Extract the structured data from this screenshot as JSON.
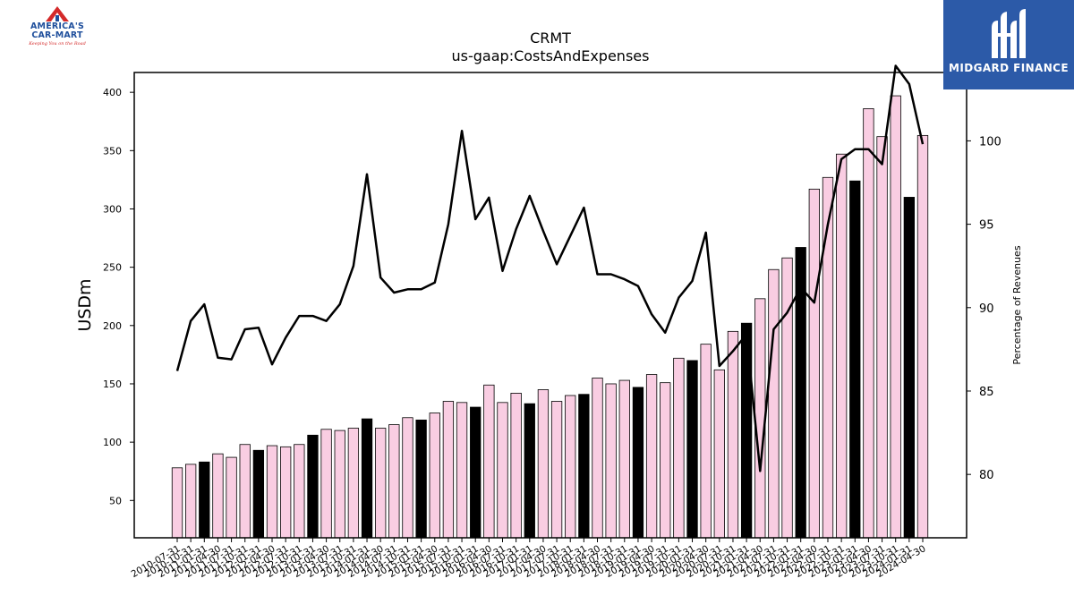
{
  "logos": {
    "left": {
      "line1": "AMERICA'S",
      "line2": "CAR-MART",
      "tagline": "Keeping You on the Road"
    },
    "right": {
      "name": "MIDGARD FINANCE"
    }
  },
  "colors": {
    "bar_fill": "#f9cde2",
    "bar_highlight": "#000000",
    "bar_edge": "#000000",
    "line": "#000000",
    "logo_right_bg": "#2c5aa8",
    "logo_red": "#d42a2a",
    "logo_blue": "#1f4f9c"
  },
  "chart_data": {
    "type": "bar",
    "title": "CRMT",
    "subtitle": "us-gaap:CostsAndExpenses",
    "ylabel": "USDm",
    "y2label": "Percentage of Revenues",
    "ylim": [
      18,
      417
    ],
    "y2lim": [
      76.2,
      104.1
    ],
    "yticks": [
      50,
      100,
      150,
      200,
      250,
      300,
      350,
      400
    ],
    "y2ticks": [
      80,
      85,
      90,
      95,
      100
    ],
    "categories": [
      "2010-07-31",
      "2010-10-31",
      "2011-01-31",
      "2011-04-30",
      "2011-07-31",
      "2011-10-31",
      "2012-01-31",
      "2012-04-30",
      "2012-07-31",
      "2012-10-31",
      "2013-01-31",
      "2013-04-30",
      "2013-07-31",
      "2013-10-31",
      "2014-01-31",
      "2014-04-30",
      "2014-07-31",
      "2014-10-31",
      "2015-01-31",
      "2015-04-30",
      "2015-07-31",
      "2015-10-31",
      "2016-01-31",
      "2016-04-30",
      "2016-07-31",
      "2016-10-31",
      "2017-01-31",
      "2017-04-30",
      "2017-07-31",
      "2017-10-31",
      "2018-01-31",
      "2018-04-30",
      "2018-07-31",
      "2018-10-31",
      "2019-01-31",
      "2019-04-30",
      "2019-07-31",
      "2019-10-31",
      "2020-01-31",
      "2020-04-30",
      "2020-07-31",
      "2020-10-31",
      "2021-01-31",
      "2021-04-30",
      "2021-07-31",
      "2021-10-31",
      "2022-01-31",
      "2022-04-30",
      "2022-07-31",
      "2022-10-31",
      "2023-01-31",
      "2023-04-30",
      "2023-07-31",
      "2023-10-31",
      "2024-01-31",
      "2024-04-30"
    ],
    "series": [
      {
        "type": "bar",
        "axis": "left",
        "values": [
          78,
          81,
          83,
          90,
          87,
          98,
          93,
          97,
          96,
          98,
          106,
          111,
          110,
          112,
          120,
          112,
          115,
          121,
          119,
          125,
          135,
          134,
          130,
          149,
          134,
          142,
          133,
          145,
          135,
          140,
          141,
          155,
          150,
          153,
          147,
          158,
          151,
          172,
          170,
          184,
          162,
          195,
          202,
          223,
          248,
          258,
          267,
          317,
          327,
          347,
          324,
          386,
          362,
          397,
          310,
          363
        ]
      },
      {
        "type": "line",
        "axis": "right",
        "values": [
          86.2,
          89.2,
          90.2,
          87.0,
          86.9,
          88.7,
          88.8,
          86.6,
          88.2,
          89.5,
          89.5,
          89.2,
          90.2,
          92.5,
          98.0,
          91.8,
          90.9,
          91.1,
          91.1,
          91.5,
          95.0,
          100.6,
          95.3,
          96.6,
          92.2,
          94.7,
          96.7,
          94.6,
          92.6,
          94.3,
          96.0,
          92.0,
          92.0,
          91.7,
          91.3,
          89.6,
          88.5,
          90.6,
          91.6,
          94.5,
          86.5,
          87.4,
          88.4,
          80.2,
          88.7,
          89.7,
          91.2,
          90.3,
          95.0,
          98.9,
          99.5,
          99.5,
          98.6,
          104.5,
          103.4,
          99.8
        ]
      }
    ],
    "highlight_indices": [
      2,
      6,
      10,
      14,
      18,
      22,
      26,
      30,
      34,
      38,
      42,
      46,
      50,
      54
    ],
    "legend": "none",
    "grid": false
  }
}
